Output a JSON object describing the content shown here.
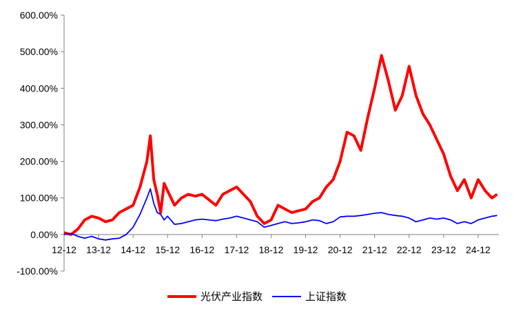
{
  "chart_data": {
    "type": "line",
    "title": "",
    "xlabel": "",
    "ylabel": "",
    "ylim": [
      -100,
      600
    ],
    "y_ticks": [
      600,
      500,
      400,
      300,
      200,
      100,
      0,
      -100
    ],
    "y_tick_labels": [
      "600.00%",
      "500.00%",
      "400.00%",
      "300.00%",
      "200.00%",
      "100.00%",
      "0.00%",
      "-100.00%"
    ],
    "xlim": [
      0,
      12.6
    ],
    "x_ticks": [
      0,
      1,
      2,
      3,
      4,
      5,
      6,
      7,
      8,
      9,
      10,
      11,
      12
    ],
    "x_tick_labels": [
      "12-12",
      "13-12",
      "14-12",
      "15-12",
      "16-12",
      "17-12",
      "18-12",
      "19-12",
      "20-12",
      "21-12",
      "22-12",
      "23-12",
      "24-12"
    ],
    "grid": false,
    "legend_position": "bottom",
    "series": [
      {
        "name": "光伏产业指数",
        "color": "#ff0000",
        "x": [
          0,
          0.2,
          0.4,
          0.6,
          0.8,
          1.0,
          1.2,
          1.4,
          1.6,
          1.8,
          2.0,
          2.2,
          2.4,
          2.5,
          2.6,
          2.7,
          2.8,
          2.9,
          3.0,
          3.2,
          3.4,
          3.6,
          3.8,
          4.0,
          4.2,
          4.4,
          4.6,
          4.8,
          5.0,
          5.2,
          5.4,
          5.6,
          5.8,
          6.0,
          6.2,
          6.4,
          6.6,
          6.8,
          7.0,
          7.2,
          7.4,
          7.6,
          7.8,
          8.0,
          8.2,
          8.4,
          8.6,
          8.8,
          9.0,
          9.2,
          9.4,
          9.6,
          9.8,
          10.0,
          10.2,
          10.4,
          10.6,
          10.8,
          11.0,
          11.2,
          11.4,
          11.6,
          11.8,
          12.0,
          12.2,
          12.4,
          12.55
        ],
        "values": [
          5,
          0,
          15,
          40,
          50,
          45,
          35,
          40,
          60,
          70,
          80,
          130,
          200,
          270,
          150,
          110,
          60,
          140,
          120,
          80,
          100,
          110,
          105,
          110,
          95,
          80,
          110,
          120,
          130,
          110,
          90,
          50,
          30,
          40,
          80,
          70,
          60,
          65,
          70,
          90,
          100,
          130,
          150,
          200,
          280,
          270,
          230,
          320,
          400,
          490,
          420,
          340,
          380,
          460,
          380,
          330,
          300,
          260,
          220,
          160,
          120,
          150,
          100,
          150,
          120,
          100,
          110
        ]
      },
      {
        "name": "上证指数",
        "color": "#0000ff",
        "x": [
          0,
          0.2,
          0.4,
          0.6,
          0.8,
          1.0,
          1.2,
          1.4,
          1.6,
          1.8,
          2.0,
          2.2,
          2.4,
          2.5,
          2.6,
          2.7,
          2.8,
          2.9,
          3.0,
          3.2,
          3.4,
          3.6,
          3.8,
          4.0,
          4.2,
          4.4,
          4.6,
          4.8,
          5.0,
          5.2,
          5.4,
          5.6,
          5.8,
          6.0,
          6.2,
          6.4,
          6.6,
          6.8,
          7.0,
          7.2,
          7.4,
          7.6,
          7.8,
          8.0,
          8.2,
          8.4,
          8.6,
          8.8,
          9.0,
          9.2,
          9.4,
          9.6,
          9.8,
          10.0,
          10.2,
          10.4,
          10.6,
          10.8,
          11.0,
          11.2,
          11.4,
          11.6,
          11.8,
          12.0,
          12.2,
          12.4,
          12.55
        ],
        "values": [
          0,
          3,
          -5,
          -10,
          -5,
          -12,
          -15,
          -12,
          -10,
          0,
          20,
          55,
          100,
          125,
          85,
          60,
          55,
          40,
          50,
          28,
          30,
          35,
          40,
          42,
          40,
          38,
          42,
          45,
          50,
          45,
          40,
          35,
          20,
          25,
          30,
          35,
          30,
          32,
          35,
          40,
          38,
          30,
          35,
          48,
          50,
          50,
          52,
          55,
          58,
          60,
          55,
          52,
          50,
          45,
          35,
          40,
          45,
          42,
          45,
          40,
          30,
          35,
          30,
          40,
          45,
          50,
          52
        ]
      }
    ]
  }
}
